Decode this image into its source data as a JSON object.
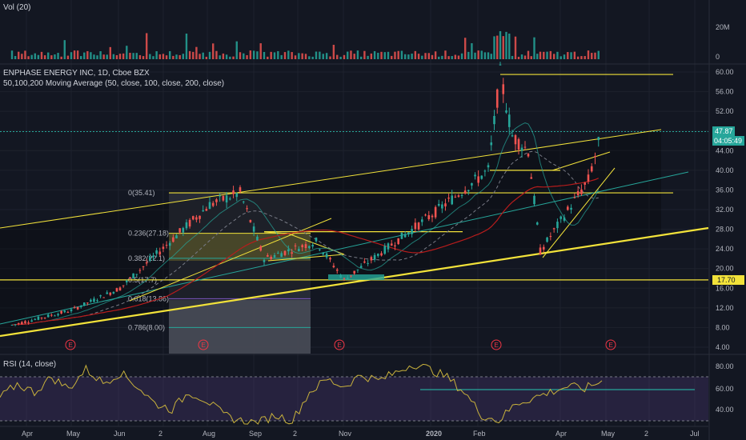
{
  "panes": {
    "volume": {
      "title": "Vol (20)",
      "ticks": [
        "20M",
        "0"
      ]
    },
    "price": {
      "title": "ENPHASE ENERGY INC, 1D, Cboe BZX",
      "indicator": "50,100,200 Moving Average (50, close, 100, close, 200, close)"
    },
    "rsi": {
      "title": "RSI (14, close)",
      "ticks": [
        "80.00",
        "60.00",
        "40.00"
      ]
    }
  },
  "badges": {
    "last_price": "47.87",
    "countdown": "04:05:49",
    "support": "17.70"
  },
  "fib_labels": [
    "0(35.41)",
    "0.236(27.18)",
    "0.382(22.1)",
    "0.5(17.7)",
    "0.618(13.86)",
    "0.786(8.00)"
  ],
  "earnings_marker": "E",
  "colors": {
    "up": "#26a69a",
    "down": "#ef5350",
    "trendline": "#f2e23a",
    "channel": "#26a69a",
    "rsi_line": "#c9b23c",
    "rsi_band": "#7e57c2",
    "last_price_badge": "#26a69a",
    "support_badge": "#f2e23a"
  },
  "chart_data": {
    "type": "candlestick",
    "x_ticks": [
      "Apr",
      "May",
      "Jun",
      "2",
      "Aug",
      "Sep",
      "2",
      "Nov",
      "2020",
      "Feb",
      "Apr",
      "May",
      "2",
      "Jul"
    ],
    "y_ticks": [
      60,
      56,
      52,
      48,
      44,
      40,
      36,
      32,
      28,
      24,
      20,
      16,
      12,
      8,
      4
    ],
    "ylim": [
      3,
      62
    ],
    "price_path": [
      [
        "Apr",
        8.5
      ],
      [
        "May",
        11.5
      ],
      [
        "Jun",
        16
      ],
      [
        "Aug",
        33
      ],
      [
        "Aug",
        35.4
      ],
      [
        "Sep",
        22
      ],
      [
        "Sep",
        25.5
      ],
      [
        "Nov",
        17.7
      ],
      [
        "2020",
        31
      ],
      [
        "Feb",
        40
      ],
      [
        "Feb",
        59.5
      ],
      [
        "Feb",
        47
      ],
      [
        "Feb",
        44
      ],
      [
        "Apr",
        23.5
      ],
      [
        "Apr",
        38
      ],
      [
        "May",
        47.87
      ]
    ],
    "last_price": 47.87,
    "support_level": 17.7,
    "horizontal_levels": [
      59.5,
      40.0,
      35.41,
      27.5,
      17.7
    ],
    "fibonacci": [
      {
        "ratio": 0,
        "price": 35.41
      },
      {
        "ratio": 0.236,
        "price": 27.18
      },
      {
        "ratio": 0.382,
        "price": 22.1
      },
      {
        "ratio": 0.5,
        "price": 17.7
      },
      {
        "ratio": 0.618,
        "price": 13.86
      },
      {
        "ratio": 0.786,
        "price": 8.0
      }
    ],
    "earnings_dates": [
      "Apr",
      "Aug",
      "Nov",
      "Feb",
      "May"
    ],
    "rsi": {
      "levels": [
        70,
        30
      ],
      "ylim": [
        25,
        88
      ],
      "ticks": [
        80,
        60,
        40
      ],
      "path": [
        50,
        62,
        55,
        68,
        58,
        75,
        63,
        72,
        60,
        45,
        40,
        55,
        48,
        35,
        30,
        28,
        35,
        30,
        55,
        66,
        60,
        70,
        65,
        72,
        80,
        75,
        68,
        55,
        35,
        30,
        45,
        50,
        55,
        60,
        58,
        65
      ]
    }
  }
}
